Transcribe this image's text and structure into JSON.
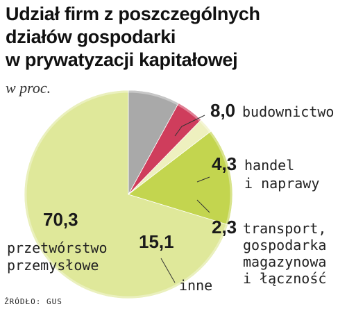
{
  "title_lines": [
    "Udział firm z poszczególnych",
    "działów gospodarki",
    "w prywatyzacji kapitałowej"
  ],
  "unit": "w proc.",
  "source": "ŹRÓDŁO: GUS",
  "colors": {
    "przetworstwo": "#dfe89a",
    "inne": "#c3d54f",
    "transport": "#eef0bf",
    "handel": "#cf3d5c",
    "budownictwo": "#a9a9a9",
    "leader": "#333333"
  },
  "chart_data": {
    "type": "pie",
    "title": "Udział firm z poszczególnych działów gospodarki w prywatyzacji kapitałowej",
    "unit": "w proc.",
    "slices": [
      {
        "value": 70.3,
        "value_label": "70,3",
        "label_lines": [
          "przetwórstwo",
          "przemysłowe"
        ],
        "color_key": "przetworstwo"
      },
      {
        "value": 15.1,
        "value_label": "15,1",
        "label_lines": [
          "inne"
        ],
        "color_key": "inne"
      },
      {
        "value": 2.3,
        "value_label": "2,3",
        "label_lines": [
          "transport,",
          "gospodarka",
          "magazynowa",
          "i łączność"
        ],
        "color_key": "transport"
      },
      {
        "value": 4.3,
        "value_label": "4,3",
        "label_lines": [
          "handel",
          "i naprawy"
        ],
        "color_key": "handel"
      },
      {
        "value": 8.0,
        "value_label": "8,0",
        "label_lines": [
          "budownictwo"
        ],
        "color_key": "budownictwo"
      }
    ]
  }
}
